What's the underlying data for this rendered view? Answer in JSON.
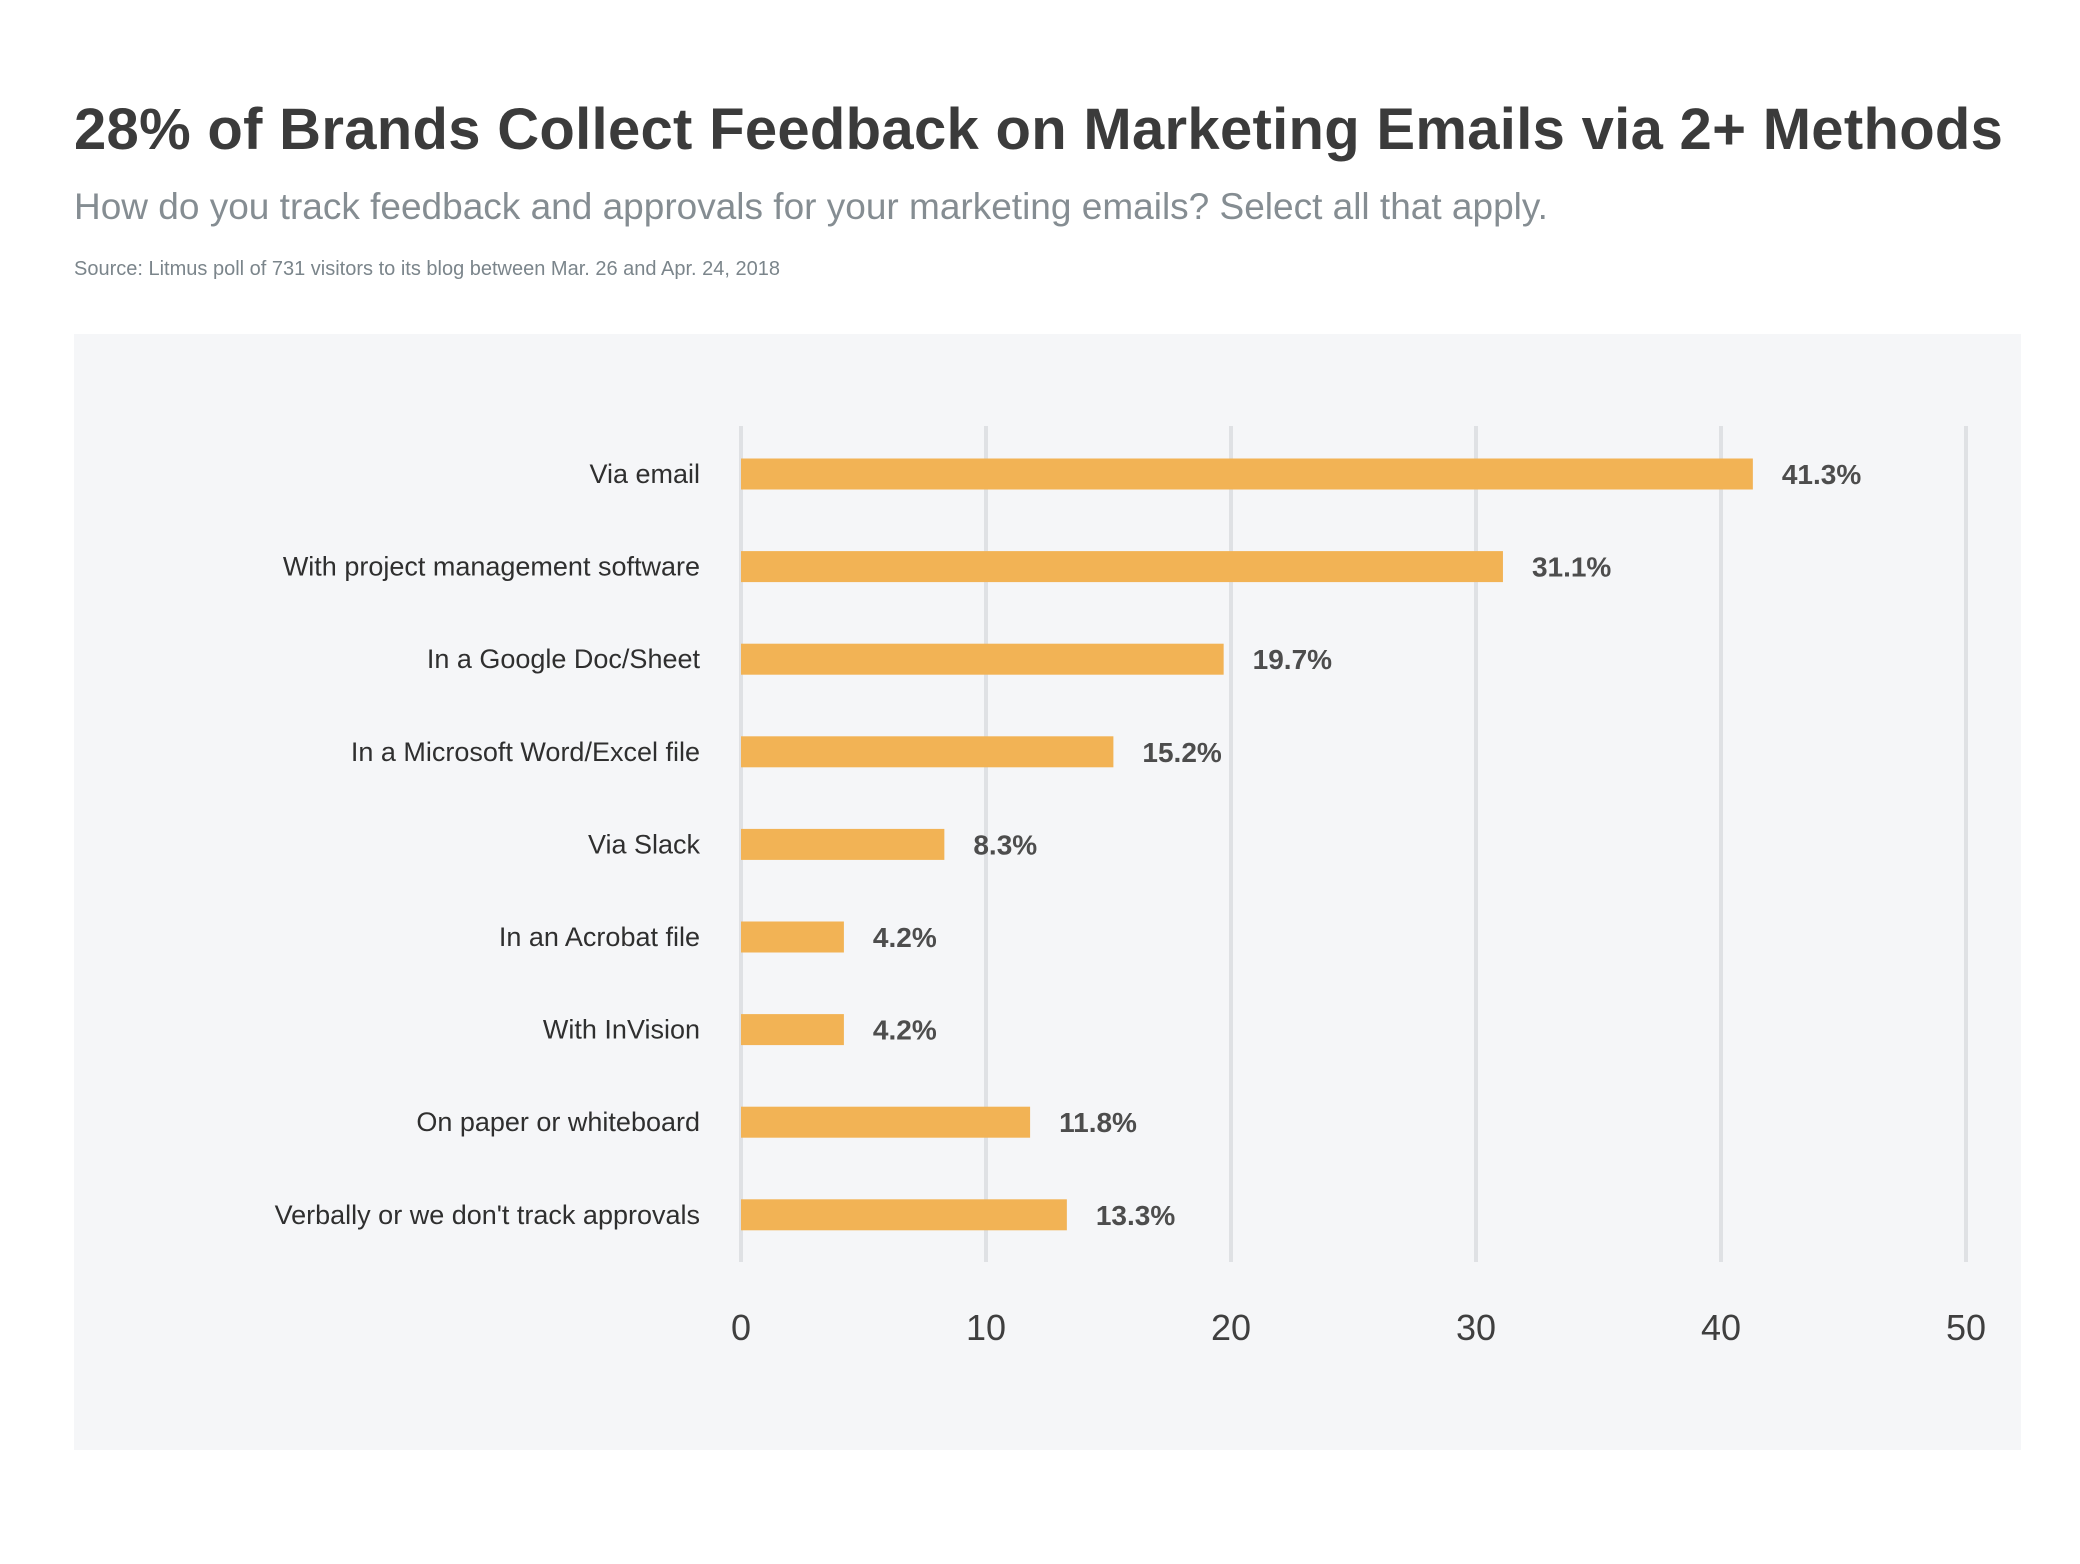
{
  "header": {
    "title": "28% of Brands Collect Feedback on Marketing Emails via 2+ Methods",
    "subtitle": "How do you track feedback and approvals for your marketing emails? Select all that apply.",
    "source": "Source: Litmus poll of 731 visitors to its blog between Mar. 26 and Apr. 24, 2018"
  },
  "chart_data": {
    "type": "bar",
    "orientation": "horizontal",
    "categories": [
      "Via email",
      "With project management software",
      "In a Google Doc/Sheet",
      "In a Microsoft Word/Excel file",
      "Via Slack",
      "In an Acrobat file",
      "With InVision",
      "On paper or whiteboard",
      "Verbally or we don't track approvals"
    ],
    "values": [
      41.3,
      31.1,
      19.7,
      15.2,
      8.3,
      4.2,
      4.2,
      11.8,
      13.3
    ],
    "value_labels": [
      "41.3%",
      "31.1%",
      "19.7%",
      "15.2%",
      "8.3%",
      "4.2%",
      "4.2%",
      "11.8%",
      "13.3%"
    ],
    "xticks": [
      "0",
      "10",
      "20",
      "30",
      "40",
      "50"
    ],
    "xlim": [
      0,
      50
    ],
    "grid": true,
    "bar_color": "#f2b355"
  }
}
